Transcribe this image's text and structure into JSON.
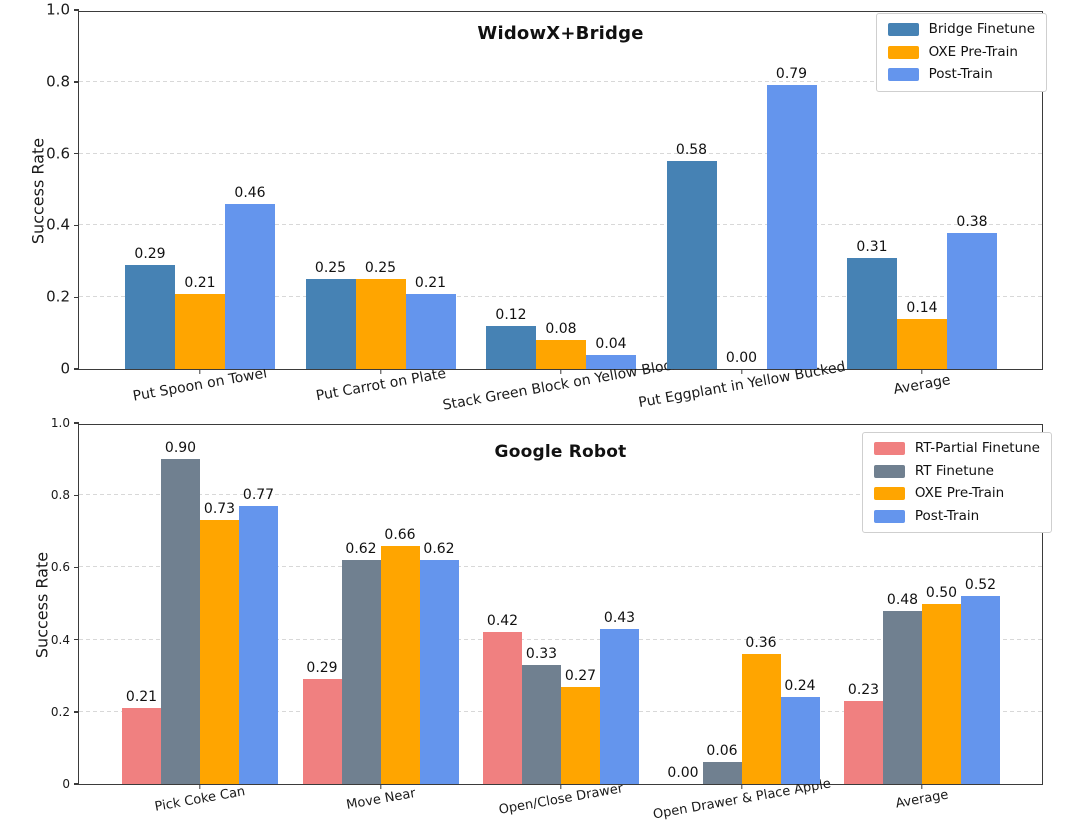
{
  "page": {
    "background": "#ffffff"
  },
  "chart_data": [
    {
      "type": "bar",
      "title": "WidowX+Bridge",
      "xlabel": "",
      "ylabel": "Success Rate",
      "ylim": [
        0,
        1.0
      ],
      "ytick_labels": [
        "0",
        "0.2",
        "0.4",
        "0.6",
        "0.8",
        "1.0"
      ],
      "grid": {
        "axis": "y",
        "style": "dashed",
        "color": "#d8d8d8"
      },
      "legend_position": "upper right",
      "value_labels": true,
      "value_label_format": "0.00",
      "categories": [
        "Put Spoon on Towel",
        "Put Carrot on Plate",
        "Stack Green Block on Yellow Block",
        "Put Eggplant in Yellow Bucked",
        "Average"
      ],
      "series": [
        {
          "name": "Bridge Finetune",
          "color": "#4682B4",
          "values": [
            0.29,
            0.25,
            0.12,
            0.58,
            0.31
          ]
        },
        {
          "name": "OXE Pre-Train",
          "color": "#FFA500",
          "values": [
            0.21,
            0.25,
            0.08,
            0.0,
            0.14
          ]
        },
        {
          "name": "Post-Train",
          "color": "#6495ED",
          "values": [
            0.46,
            0.21,
            0.04,
            0.79,
            0.38
          ]
        }
      ]
    },
    {
      "type": "bar",
      "title": "Google Robot",
      "xlabel": "",
      "ylabel": "Success Rate",
      "ylim": [
        0,
        1.0
      ],
      "ytick_labels": [
        "0",
        "0.2",
        "0.4",
        "0.6",
        "0.8",
        "1.0"
      ],
      "grid": {
        "axis": "y",
        "style": "dashed",
        "color": "#d8d8d8"
      },
      "legend_position": "upper right",
      "value_labels": true,
      "value_label_format": "0.00",
      "categories": [
        "Pick Coke Can",
        "Move Near",
        "Open/Close Drawer",
        "Open Drawer & Place Apple",
        "Average"
      ],
      "series": [
        {
          "name": "RT-Partial Finetune",
          "color": "#F08080",
          "values": [
            0.21,
            0.29,
            0.42,
            0.0,
            0.23
          ]
        },
        {
          "name": "RT Finetune",
          "color": "#708090",
          "values": [
            0.9,
            0.62,
            0.33,
            0.06,
            0.48
          ]
        },
        {
          "name": "OXE Pre-Train",
          "color": "#FFA500",
          "values": [
            0.73,
            0.66,
            0.27,
            0.36,
            0.5
          ]
        },
        {
          "name": "Post-Train",
          "color": "#6495ED",
          "values": [
            0.77,
            0.62,
            0.43,
            0.24,
            0.52
          ]
        }
      ]
    }
  ]
}
